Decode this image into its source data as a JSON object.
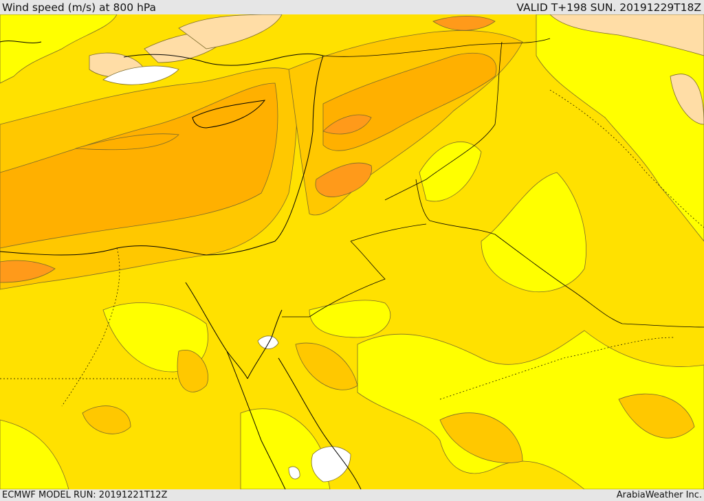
{
  "header": {
    "title": "Wind speed (m/s) at 800 hPa",
    "valid": "VALID T+198 SUN. 20191229T18Z"
  },
  "footer": {
    "model_run": "ECMWF MODEL RUN: 20191221T12Z",
    "credit": "ArabiaWeather Inc."
  },
  "colors": {
    "bright_yellow": "#ffff00",
    "yellow": "#ffe100",
    "gold": "#ffc800",
    "orange": "#ffb000",
    "dark_orange": "#ff9a1a",
    "pale_peach": "#ffdda6",
    "white": "#ffffff",
    "contour": "#7a6a2a",
    "border": "#000000"
  }
}
